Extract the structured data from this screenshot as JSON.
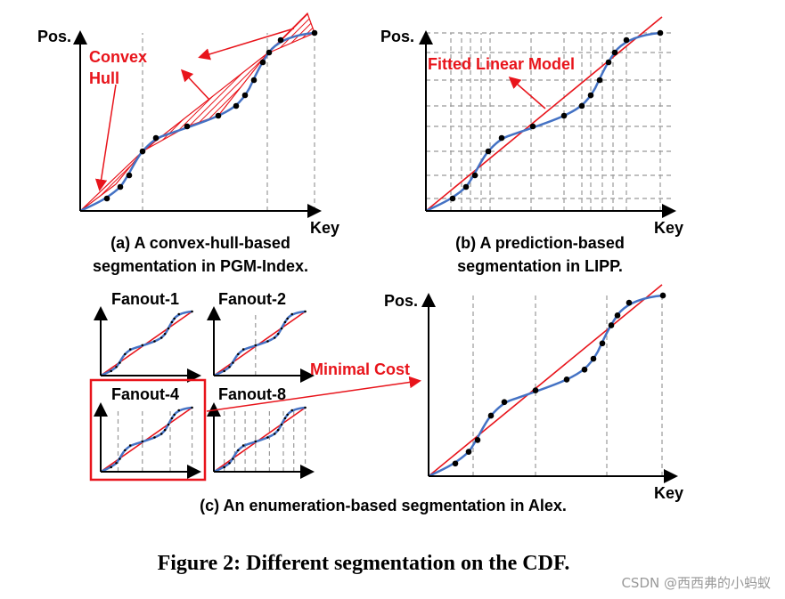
{
  "panel_a": {
    "y_label": "Pos.",
    "x_label": "Key",
    "annotation": [
      "Convex",
      "Hull"
    ],
    "caption": [
      "(a) A convex-hull-based",
      "segmentation in PGM-Index."
    ]
  },
  "panel_b": {
    "y_label": "Pos.",
    "x_label": "Key",
    "annotation": "Fitted Linear Model",
    "caption": [
      "(b) A prediction-based",
      "segmentation in LIPP."
    ]
  },
  "panel_c": {
    "y_label": "Pos.",
    "x_label": "Key",
    "fanouts": [
      "Fanout-1",
      "Fanout-2",
      "Fanout-4",
      "Fanout-8"
    ],
    "annotation": "Minimal Cost",
    "caption": "(c) An enumeration-based segmentation in Alex."
  },
  "figure_caption": "Figure 2: Different segmentation on the CDF.",
  "watermark": "CSDN @西西弗的小蚂蚁"
}
